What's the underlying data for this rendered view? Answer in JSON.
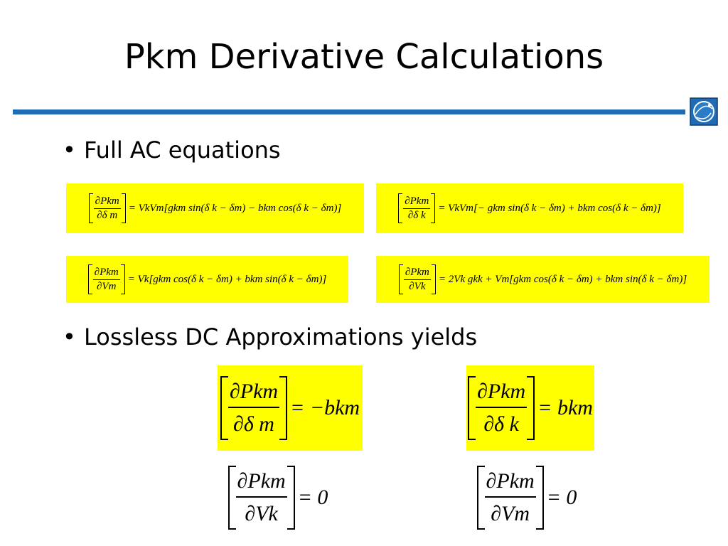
{
  "title": "Pkm Derivative Calculations",
  "bullets": [
    "Full AC equations",
    "Lossless DC Approximations yields"
  ],
  "bullet_symbol": "•",
  "colors": {
    "accent": "#1f6bb4",
    "highlight": "#ffff00"
  },
  "logo_icon": "globe-logo-icon",
  "ac_equations": [
    {
      "num": "∂Pkm",
      "den": "∂δ m",
      "rhs": "= VkVm[gkm sin(δ k − δm) − bkm cos(δ k − δm)]"
    },
    {
      "num": "∂Pkm",
      "den": "∂δ k",
      "rhs": "= VkVm[− gkm sin(δ k − δm) + bkm cos(δ k − δm)]"
    },
    {
      "num": "∂Pkm",
      "den": "∂Vm",
      "rhs": "= Vk[gkm cos(δ k − δm) + bkm sin(δ k − δm)]"
    },
    {
      "num": "∂Pkm",
      "den": "∂Vk",
      "rhs": "= 2Vk gkk + Vm[gkm cos(δ k − δm) + bkm sin(δ k − δm)]"
    }
  ],
  "dc_equations": [
    {
      "num": "∂Pkm",
      "den": "∂δ m",
      "rhs": "= −bkm"
    },
    {
      "num": "∂Pkm",
      "den": "∂δ k",
      "rhs": "= bkm"
    },
    {
      "num": "∂Pkm",
      "den": "∂Vk",
      "rhs": "= 0"
    },
    {
      "num": "∂Pkm",
      "den": "∂Vm",
      "rhs": "= 0"
    }
  ]
}
